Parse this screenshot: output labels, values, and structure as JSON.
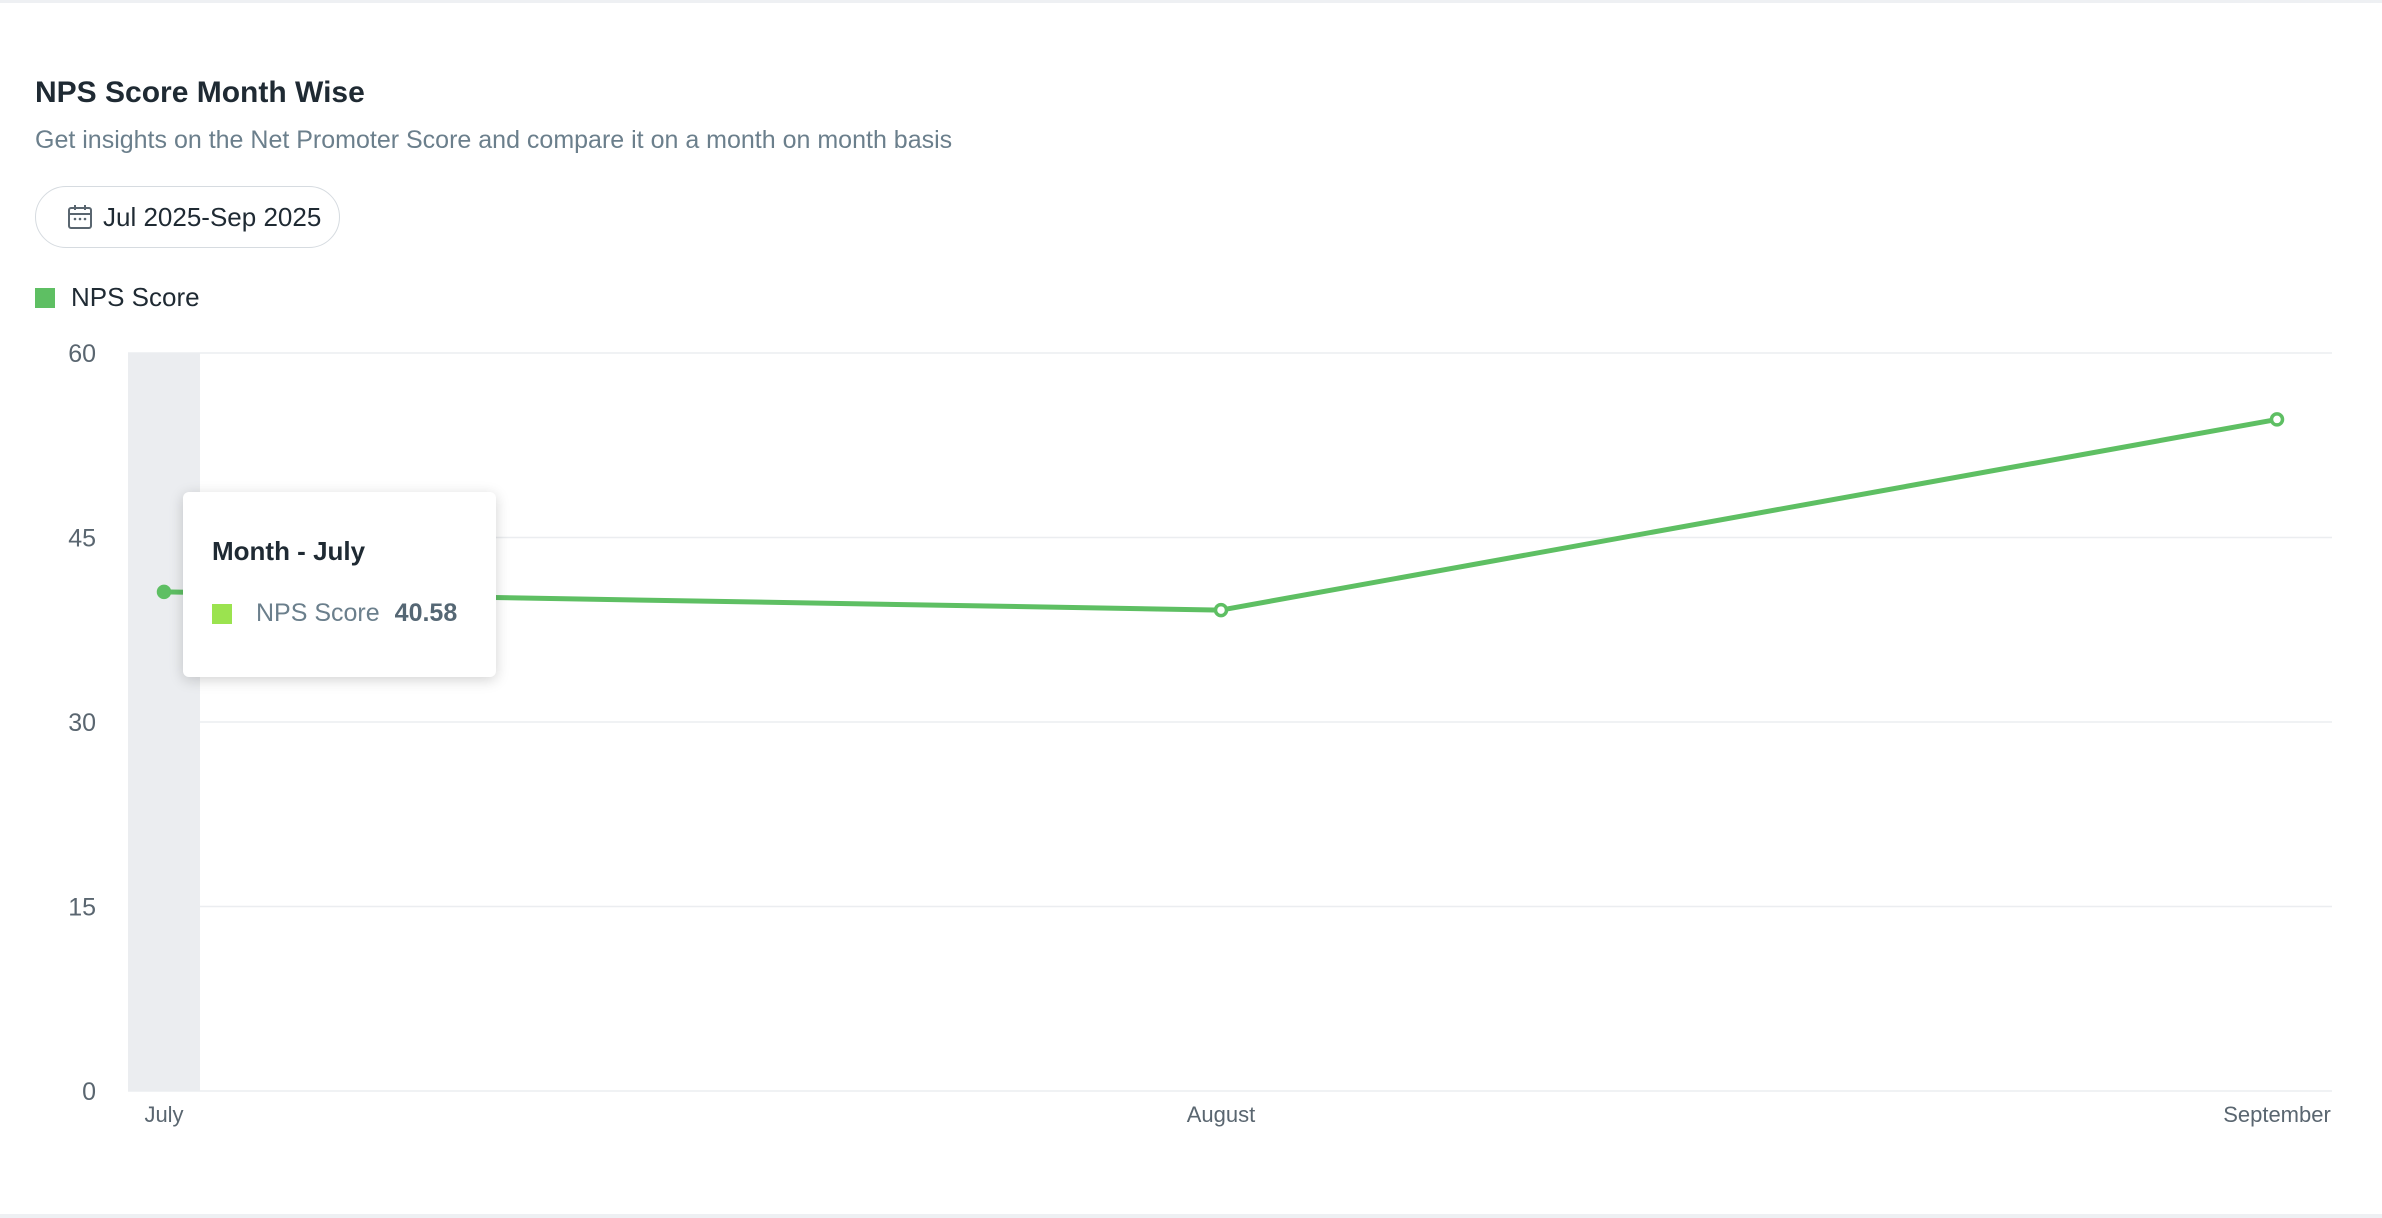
{
  "header": {
    "title": "NPS Score Month Wise",
    "subtitle": "Get insights on the Net Promoter Score and compare it on a month on month basis"
  },
  "date_filter": {
    "label": "Jul 2025-Sep 2025",
    "icon": "calendar-icon"
  },
  "tooltip": {
    "title": "Month - July",
    "series_name": "NPS Score",
    "value": "40.58",
    "swatch_color": "#9be34f"
  },
  "chart_data": {
    "type": "line",
    "categories": [
      "July",
      "August",
      "September"
    ],
    "series": [
      {
        "name": "NPS Score",
        "values": [
          40.58,
          39.1,
          54.6
        ],
        "color": "#5ebf63"
      }
    ],
    "y_ticks": [
      0,
      15,
      30,
      45,
      60
    ],
    "ylim": [
      0,
      60
    ],
    "grid": true,
    "legend": "top-left",
    "highlighted_category": "July",
    "colors": {
      "line": "#5ebf63",
      "grid": "#ebedf0",
      "highlight": "#ebedf0",
      "tick_text": "#5a6670"
    }
  }
}
